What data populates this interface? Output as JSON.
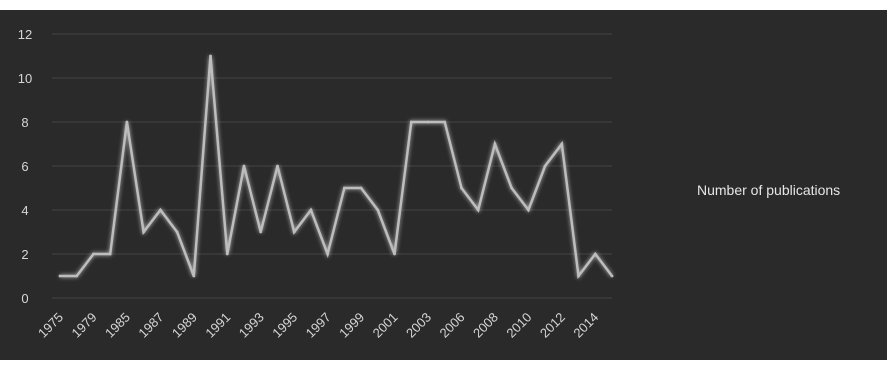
{
  "chart_data": {
    "type": "line",
    "title": "",
    "xlabel": "",
    "ylabel": "",
    "ylim": [
      0,
      12
    ],
    "yticks": [
      0,
      2,
      4,
      6,
      8,
      10,
      12
    ],
    "grid": true,
    "legend_position": "right",
    "x": [
      "1975",
      "1977",
      "1979",
      "1983",
      "1985",
      "1986",
      "1987",
      "1988",
      "1989",
      "1990",
      "1991",
      "1992",
      "1993",
      "1994",
      "1995",
      "1996",
      "1997",
      "1998",
      "1999",
      "2000",
      "2001",
      "2002",
      "2003",
      "2004",
      "2006",
      "2007",
      "2008",
      "2009",
      "2010",
      "2011",
      "2012",
      "2013",
      "2014",
      "2015"
    ],
    "x_tick_labels": [
      "1975",
      "1979",
      "1985",
      "1987",
      "1989",
      "1991",
      "1993",
      "1995",
      "1997",
      "1999",
      "2001",
      "2003",
      "2006",
      "2008",
      "2010",
      "2012",
      "2014"
    ],
    "series": [
      {
        "name": "Number of publications",
        "color": "#bdbdbd",
        "values": [
          1,
          1,
          2,
          2,
          8,
          3,
          4,
          3,
          1,
          11,
          2,
          6,
          3,
          6,
          3,
          4,
          2,
          5,
          5,
          4,
          2,
          8,
          8,
          8,
          5,
          4,
          7,
          5,
          4,
          6,
          7,
          1,
          2,
          1
        ]
      }
    ],
    "colors": {
      "background": "#2a2a2a",
      "grid": "#444444",
      "text": "#d6d6d6"
    }
  }
}
